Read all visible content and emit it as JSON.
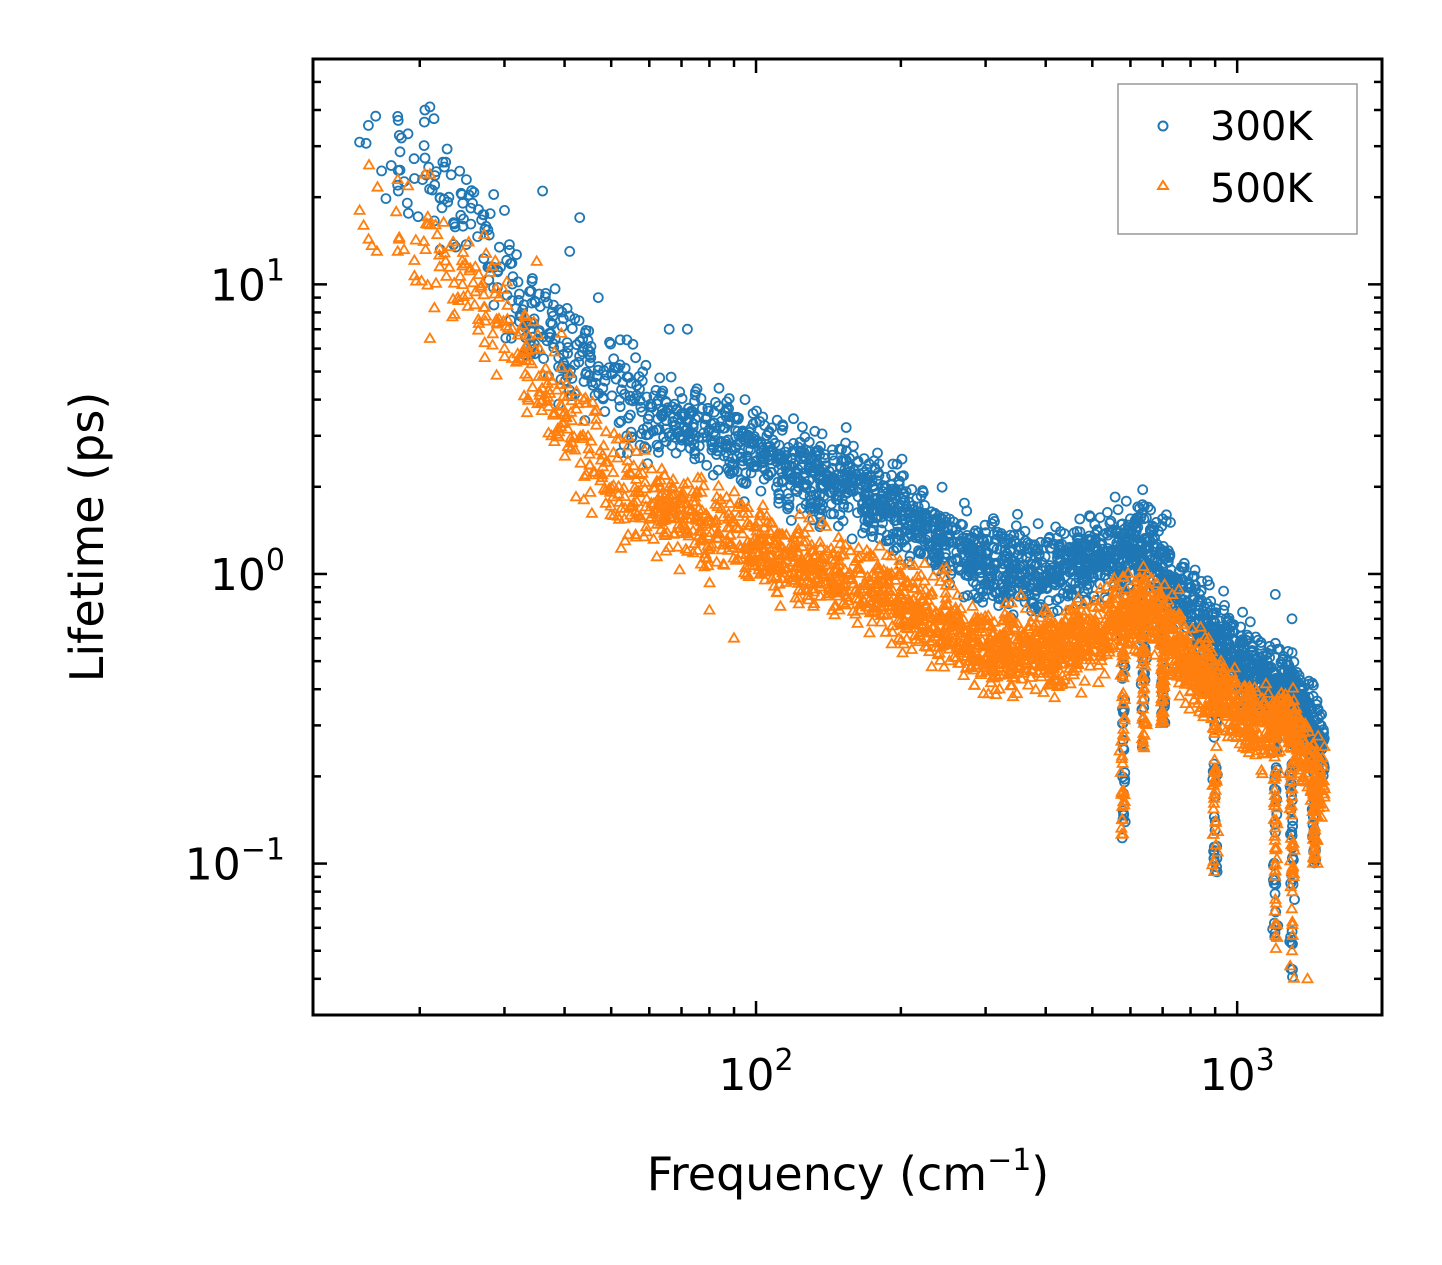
{
  "chart_data": {
    "type": "scatter",
    "title": "",
    "xlabel": "Frequency (cm",
    "xlabel_sup": "−1",
    "xlabel_end": ")",
    "ylabel": "Lifetime (ps)",
    "xscale": "log",
    "yscale": "log",
    "xlim": [
      12,
      2000
    ],
    "ylim": [
      0.03,
      60
    ],
    "x_ticks": [
      {
        "value": 100,
        "base": "10",
        "exp": "2"
      },
      {
        "value": 1000,
        "base": "10",
        "exp": "3"
      }
    ],
    "y_ticks": [
      {
        "value": 0.1,
        "base": "10",
        "exp": "−1"
      },
      {
        "value": 1,
        "base": "10",
        "exp": "0"
      },
      {
        "value": 10,
        "base": "10",
        "exp": "1"
      }
    ],
    "legend_position": "top-right",
    "series": [
      {
        "name": "300K",
        "color": "#1f77b4",
        "marker": "circle",
        "trend": [
          [
            15,
            32
          ],
          [
            18,
            30
          ],
          [
            22,
            22
          ],
          [
            27,
            14
          ],
          [
            33,
            8
          ],
          [
            40,
            6
          ],
          [
            50,
            4.5
          ],
          [
            60,
            3.6
          ],
          [
            80,
            3.0
          ],
          [
            100,
            2.6
          ],
          [
            130,
            2.2
          ],
          [
            170,
            1.9
          ],
          [
            220,
            1.5
          ],
          [
            300,
            1.05
          ],
          [
            400,
            1.0
          ],
          [
            500,
            1.15
          ],
          [
            650,
            1.25
          ],
          [
            750,
            0.9
          ],
          [
            900,
            0.6
          ],
          [
            1100,
            0.45
          ],
          [
            1300,
            0.4
          ],
          [
            1500,
            0.25
          ]
        ],
        "highlights": [
          [
            15,
            31
          ],
          [
            18,
            38
          ],
          [
            20.5,
            40
          ],
          [
            21,
            41
          ],
          [
            18,
            22
          ],
          [
            23,
            20
          ],
          [
            25,
            23
          ],
          [
            30,
            18
          ],
          [
            36,
            21
          ],
          [
            43,
            17
          ],
          [
            41,
            13
          ],
          [
            47,
            9
          ],
          [
            66,
            7
          ],
          [
            72,
            7
          ],
          [
            170,
            2.3
          ],
          [
            180,
            2.4
          ],
          [
            600,
            1.55
          ],
          [
            640,
            1.55
          ],
          [
            700,
            1.55
          ],
          [
            1200,
            0.85
          ],
          [
            1300,
            0.7
          ]
        ]
      },
      {
        "name": "500K",
        "color": "#ff7f0e",
        "marker": "triangle",
        "trend": [
          [
            15,
            18
          ],
          [
            18,
            17
          ],
          [
            22,
            13
          ],
          [
            27,
            9
          ],
          [
            33,
            5.5
          ],
          [
            40,
            3.5
          ],
          [
            50,
            2.2
          ],
          [
            60,
            1.7
          ],
          [
            80,
            1.45
          ],
          [
            100,
            1.25
          ],
          [
            130,
            1.05
          ],
          [
            170,
            0.9
          ],
          [
            220,
            0.75
          ],
          [
            300,
            0.55
          ],
          [
            400,
            0.55
          ],
          [
            500,
            0.6
          ],
          [
            650,
            0.8
          ],
          [
            750,
            0.55
          ],
          [
            900,
            0.4
          ],
          [
            1100,
            0.3
          ],
          [
            1300,
            0.3
          ],
          [
            1500,
            0.18
          ]
        ],
        "highlights": [
          [
            15,
            18
          ],
          [
            18,
            23
          ],
          [
            18,
            13
          ],
          [
            20.5,
            24
          ],
          [
            21,
            24
          ],
          [
            22,
            11.5
          ],
          [
            24,
            9
          ],
          [
            21,
            6.5
          ],
          [
            28,
            11
          ],
          [
            30,
            6
          ],
          [
            35,
            12
          ],
          [
            26,
            8.5
          ],
          [
            80,
            0.75
          ],
          [
            90,
            0.6
          ],
          [
            650,
            1.0
          ],
          [
            1300,
            0.05
          ],
          [
            1400,
            0.04
          ]
        ]
      }
    ]
  }
}
